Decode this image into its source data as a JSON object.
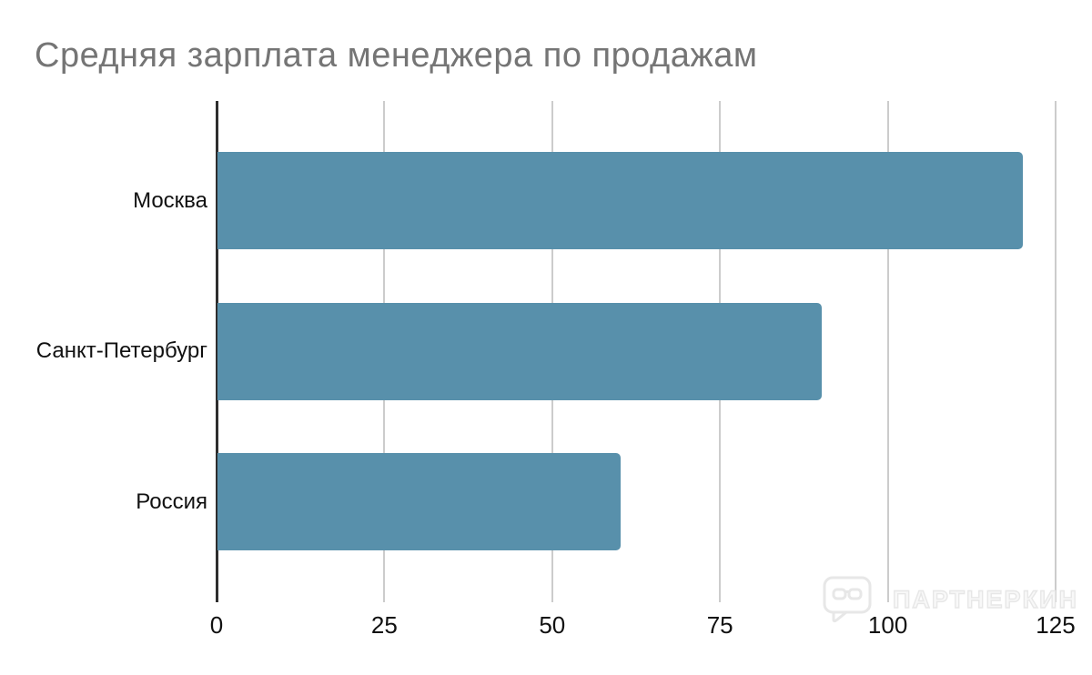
{
  "chart_data": {
    "type": "bar",
    "orientation": "horizontal",
    "title": "Средняя зарплата менеджера по продажам",
    "categories": [
      "Москва",
      "Санкт-Петербург",
      "Россия"
    ],
    "values": [
      120,
      90,
      60
    ],
    "xlabel": "",
    "ylabel": "",
    "xlim": [
      0,
      125
    ],
    "x_ticks": [
      0,
      25,
      50,
      75,
      100,
      125
    ],
    "grid": true,
    "legend": "none",
    "bar_color": "#5890ab",
    "gridline_color": "#cccccc",
    "axis_color": "#2e2e2e",
    "title_color": "#757575"
  },
  "watermark": {
    "label": "ПАРТНЕРКИН",
    "icon": "speech-bubble-glasses-icon",
    "color": "#e7e7e7"
  }
}
